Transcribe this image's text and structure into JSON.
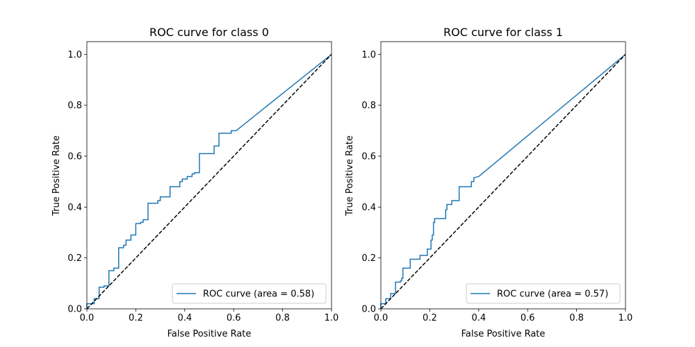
{
  "chart_data": [
    {
      "type": "line",
      "title": "ROC curve for class 0",
      "xlabel": "False Positive Rate",
      "ylabel": "True Positive Rate",
      "xlim": [
        0.0,
        1.0
      ],
      "ylim": [
        0.0,
        1.05
      ],
      "xticks": [
        "0.0",
        "0.2",
        "0.4",
        "0.6",
        "0.8",
        "1.0"
      ],
      "yticks": [
        "0.0",
        "0.2",
        "0.4",
        "0.6",
        "0.8",
        "1.0"
      ],
      "grid": false,
      "legend_position": "lower-right",
      "series": [
        {
          "name": "ROC curve (area = 0.58)",
          "color": "#1f77b4",
          "x": [
            0,
            0,
            0.03,
            0.03,
            0.05,
            0.05,
            0.07,
            0.07,
            0.09,
            0.09,
            0.11,
            0.11,
            0.13,
            0.13,
            0.15,
            0.15,
            0.16,
            0.16,
            0.18,
            0.18,
            0.2,
            0.2,
            0.22,
            0.22,
            0.23,
            0.23,
            0.25,
            0.25,
            0.29,
            0.29,
            0.3,
            0.3,
            0.34,
            0.34,
            0.38,
            0.38,
            0.39,
            0.39,
            0.41,
            0.41,
            0.43,
            0.43,
            0.44,
            0.44,
            0.46,
            0.46,
            0.52,
            0.52,
            0.54,
            0.54,
            0.59,
            0.59,
            0.61,
            1.0
          ],
          "y": [
            0,
            0.02,
            0.02,
            0.04,
            0.04,
            0.085,
            0.085,
            0.09,
            0.09,
            0.15,
            0.15,
            0.16,
            0.16,
            0.24,
            0.24,
            0.25,
            0.25,
            0.27,
            0.27,
            0.29,
            0.29,
            0.335,
            0.335,
            0.34,
            0.34,
            0.35,
            0.35,
            0.415,
            0.415,
            0.425,
            0.425,
            0.44,
            0.44,
            0.48,
            0.48,
            0.5,
            0.5,
            0.51,
            0.51,
            0.52,
            0.52,
            0.53,
            0.53,
            0.535,
            0.535,
            0.61,
            0.61,
            0.64,
            0.64,
            0.69,
            0.69,
            0.7,
            0.7,
            1.0
          ]
        },
        {
          "name": "",
          "color": "#000000",
          "dashed": true,
          "x": [
            0,
            1
          ],
          "y": [
            0,
            1
          ]
        }
      ]
    },
    {
      "type": "line",
      "title": "ROC curve for class 1",
      "xlabel": "False Positive Rate",
      "ylabel": "True Positive Rate",
      "xlim": [
        0.0,
        1.0
      ],
      "ylim": [
        0.0,
        1.05
      ],
      "xticks": [
        "0.0",
        "0.2",
        "0.4",
        "0.6",
        "0.8",
        "1.0"
      ],
      "yticks": [
        "0.0",
        "0.2",
        "0.4",
        "0.6",
        "0.8",
        "1.0"
      ],
      "grid": false,
      "legend_position": "lower-right",
      "series": [
        {
          "name": "ROC curve (area = 0.57)",
          "color": "#1f77b4",
          "x": [
            0,
            0,
            0.02,
            0.02,
            0.04,
            0.04,
            0.06,
            0.06,
            0.08,
            0.08,
            0.085,
            0.085,
            0.09,
            0.09,
            0.12,
            0.12,
            0.16,
            0.16,
            0.19,
            0.19,
            0.205,
            0.205,
            0.21,
            0.21,
            0.215,
            0.215,
            0.22,
            0.22,
            0.265,
            0.265,
            0.27,
            0.27,
            0.29,
            0.29,
            0.32,
            0.32,
            0.37,
            0.37,
            0.38,
            0.38,
            0.4,
            1.0
          ],
          "y": [
            0,
            0.02,
            0.02,
            0.04,
            0.04,
            0.06,
            0.06,
            0.105,
            0.105,
            0.11,
            0.11,
            0.12,
            0.12,
            0.16,
            0.16,
            0.195,
            0.195,
            0.21,
            0.21,
            0.235,
            0.235,
            0.27,
            0.27,
            0.29,
            0.29,
            0.34,
            0.34,
            0.355,
            0.355,
            0.39,
            0.39,
            0.41,
            0.41,
            0.425,
            0.425,
            0.48,
            0.48,
            0.5,
            0.5,
            0.515,
            0.52,
            1.0
          ]
        },
        {
          "name": "",
          "color": "#000000",
          "dashed": true,
          "x": [
            0,
            1
          ],
          "y": [
            0,
            1
          ]
        }
      ]
    }
  ]
}
